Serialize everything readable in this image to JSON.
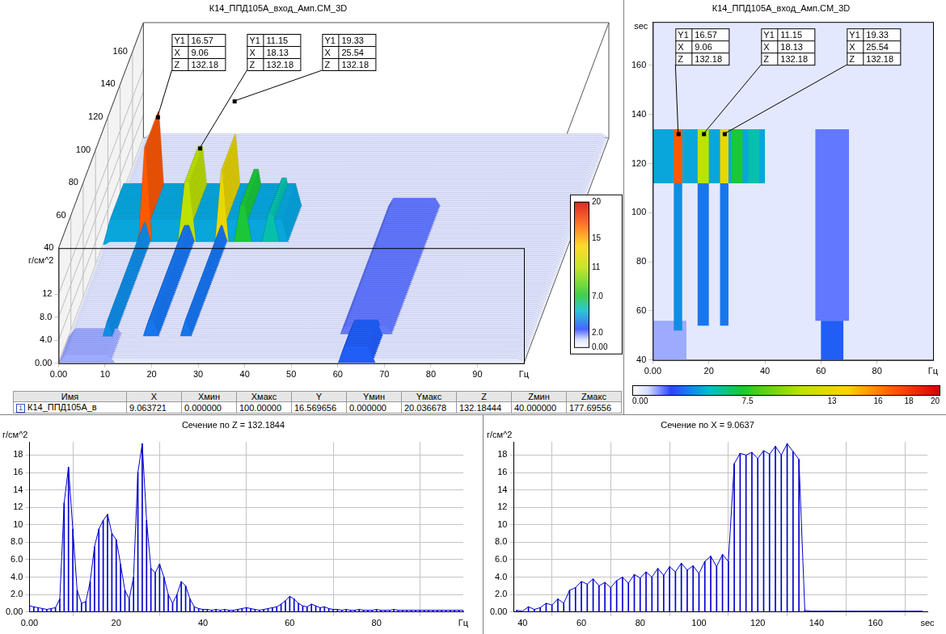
{
  "chart_data": [
    {
      "type": "waterfall3d",
      "title": "К14_ППД105А_вход_Амп.СМ_3D",
      "x_label": "Гц",
      "y_label": "г/см^2",
      "xlim": [
        0,
        100
      ],
      "xticks": [
        {
          "value": 0,
          "label": "0.00"
        },
        10,
        20,
        30,
        40,
        50,
        60,
        70,
        80,
        90
      ],
      "ylim": [
        0,
        20
      ],
      "yticks": [
        {
          "value": 0,
          "label": "0.00"
        },
        {
          "value": 4,
          "label": "4.0"
        },
        {
          "value": 8,
          "label": "8.0"
        },
        12
      ],
      "zlim": [
        40,
        177.69556
      ],
      "zticks": [
        40,
        60,
        80,
        100,
        120,
        140,
        160
      ],
      "grid": true,
      "cells": [
        {
          "x": [
            0,
            100
          ],
          "z": [
            40,
            177.69556
          ],
          "value": 0.7
        },
        {
          "x": [
            0,
            12
          ],
          "z": [
            40,
            56
          ],
          "value": 1.5
        },
        {
          "x": [
            60,
            68
          ],
          "z": [
            40,
            56
          ],
          "value": 3
        },
        {
          "x": [
            58,
            70
          ],
          "z": [
            56,
            134
          ],
          "value": 2
        },
        {
          "x": [
            0,
            40
          ],
          "z": [
            112,
            134
          ],
          "value": 4.5
        },
        {
          "x": [
            7.5,
            10.5
          ],
          "z": [
            52,
            112
          ],
          "value": 4
        },
        {
          "x": [
            7.5,
            10.5
          ],
          "z": [
            112,
            134
          ],
          "value": 17
        },
        {
          "x": [
            16,
            20
          ],
          "z": [
            54,
            112
          ],
          "value": 3.5
        },
        {
          "x": [
            16,
            20
          ],
          "z": [
            112,
            134
          ],
          "value": 11
        },
        {
          "x": [
            24,
            27
          ],
          "z": [
            54,
            112
          ],
          "value": 3.5
        },
        {
          "x": [
            24,
            27
          ],
          "z": [
            112,
            134
          ],
          "value": 13
        },
        {
          "x": [
            28,
            32
          ],
          "z": [
            112,
            134
          ],
          "value": 7
        },
        {
          "x": [
            34,
            38
          ],
          "z": [
            112,
            134
          ],
          "value": 5.5
        }
      ],
      "colorbar": {
        "range": [
          0,
          20
        ],
        "ticks": [
          {
            "value": 0,
            "label": "0.00"
          },
          {
            "value": 2,
            "label": "2.0"
          },
          {
            "value": 7,
            "label": "7.0"
          },
          11,
          15,
          20
        ]
      },
      "markers": {
        "labels": [
          "Y1",
          "X",
          "Z"
        ],
        "points": [
          {
            "y1": 16.57,
            "x": 9.06,
            "z": 132.18
          },
          {
            "y1": 11.15,
            "x": 18.13,
            "z": 132.18
          },
          {
            "y1": 19.33,
            "x": 25.54,
            "z": 132.18
          }
        ]
      }
    },
    {
      "type": "heatmap",
      "title": "К14_ППД105А_вход_Амп.СМ_3D",
      "x_label": "Гц",
      "y_label": "sec",
      "xlim": [
        0,
        100
      ],
      "xticks": [
        {
          "value": 0,
          "label": "0.00"
        },
        20,
        40,
        60,
        80
      ],
      "ylim": [
        40,
        177.69556
      ],
      "yticks": [
        40,
        60,
        80,
        100,
        120,
        140,
        160
      ],
      "grid": false,
      "cells": [
        {
          "x": [
            0,
            100
          ],
          "y": [
            40,
            177.69556
          ],
          "value": 0.7
        },
        {
          "x": [
            0,
            12
          ],
          "y": [
            40,
            56
          ],
          "value": 1.5
        },
        {
          "x": [
            60,
            68
          ],
          "y": [
            40,
            56
          ],
          "value": 3
        },
        {
          "x": [
            58,
            70
          ],
          "y": [
            56,
            134
          ],
          "value": 2
        },
        {
          "x": [
            0,
            40
          ],
          "y": [
            112,
            134
          ],
          "value": 4.5
        },
        {
          "x": [
            7.5,
            10.5
          ],
          "y": [
            52,
            112
          ],
          "value": 4
        },
        {
          "x": [
            7.5,
            10.5
          ],
          "y": [
            112,
            134
          ],
          "value": 17
        },
        {
          "x": [
            16,
            20
          ],
          "y": [
            54,
            112
          ],
          "value": 3.5
        },
        {
          "x": [
            16,
            20
          ],
          "y": [
            112,
            134
          ],
          "value": 11
        },
        {
          "x": [
            24,
            27
          ],
          "y": [
            54,
            112
          ],
          "value": 3.5
        },
        {
          "x": [
            24,
            27
          ],
          "y": [
            112,
            134
          ],
          "value": 13
        },
        {
          "x": [
            28,
            32
          ],
          "y": [
            112,
            134
          ],
          "value": 7
        },
        {
          "x": [
            34,
            38
          ],
          "y": [
            112,
            134
          ],
          "value": 5.5
        }
      ],
      "colorbar": {
        "range": [
          0,
          20
        ],
        "ticks": [
          {
            "value": 0,
            "label": "0.00"
          },
          7.5,
          13,
          16,
          18,
          20
        ]
      },
      "markers": {
        "labels": [
          "Y1",
          "X",
          "Z"
        ],
        "points": [
          {
            "y1": 16.57,
            "x": 9.06,
            "z": 132.18
          },
          {
            "y1": 11.15,
            "x": 18.13,
            "z": 132.18
          },
          {
            "y1": 19.33,
            "x": 25.54,
            "z": 132.18
          }
        ]
      }
    },
    {
      "type": "line",
      "title": "Сечение по Z = 132.1844",
      "x_label": "Гц",
      "y_label": "г/см^2",
      "color": "#0000cc",
      "marker": "none",
      "line_style": "solid",
      "grid": true,
      "xlim": [
        0,
        100
      ],
      "xticks": [
        {
          "value": 0,
          "label": "0.00"
        },
        20,
        40,
        60,
        80
      ],
      "ylim": [
        0,
        19.5
      ],
      "yticks": [
        {
          "value": 0,
          "label": "0.00"
        },
        {
          "value": 2,
          "label": "2.0"
        },
        {
          "value": 4,
          "label": "4.0"
        },
        {
          "value": 6,
          "label": "6.0"
        },
        {
          "value": 8,
          "label": "8.0"
        },
        10,
        12,
        14,
        16,
        18
      ],
      "x": [
        0,
        1,
        2,
        3,
        4,
        5,
        6,
        7,
        8,
        9,
        10,
        11,
        12,
        13,
        14,
        15,
        16,
        17,
        18,
        19,
        20,
        21,
        22,
        23,
        24,
        25,
        26,
        27,
        28,
        29,
        30,
        31,
        32,
        33,
        34,
        35,
        36,
        37,
        38,
        39,
        40,
        41,
        42,
        43,
        44,
        45,
        46,
        47,
        48,
        49,
        50,
        51,
        52,
        53,
        54,
        55,
        56,
        57,
        58,
        59,
        60,
        61,
        62,
        63,
        64,
        65,
        66,
        67,
        68,
        69,
        70,
        71,
        72,
        73,
        74,
        75,
        76,
        77,
        78,
        79,
        80,
        81,
        82,
        83,
        84,
        85,
        86,
        87,
        88,
        89,
        90,
        91,
        92,
        93,
        94,
        95,
        96,
        97,
        98,
        99,
        100
      ],
      "values": [
        0.7,
        0.6,
        0.5,
        0.4,
        0.3,
        0.4,
        0.5,
        1.5,
        12.5,
        16.6,
        9.5,
        2.5,
        1.0,
        1.2,
        3.5,
        7.5,
        9.5,
        10.5,
        11.2,
        9.0,
        8.3,
        5.5,
        2.5,
        1.5,
        4.0,
        16.0,
        19.3,
        10.5,
        5.0,
        4.5,
        5.5,
        4.0,
        2.0,
        1.0,
        2.0,
        3.5,
        3.0,
        1.5,
        0.6,
        0.4,
        0.3,
        0.3,
        0.2,
        0.3,
        0.2,
        0.3,
        0.2,
        0.2,
        0.3,
        0.4,
        0.5,
        0.4,
        0.3,
        0.2,
        0.3,
        0.4,
        0.5,
        0.6,
        0.9,
        1.3,
        1.8,
        1.5,
        1.0,
        0.7,
        0.6,
        0.9,
        0.7,
        0.5,
        0.6,
        0.4,
        0.3,
        0.3,
        0.2,
        0.3,
        0.2,
        0.2,
        0.3,
        0.2,
        0.2,
        0.2,
        0.3,
        0.2,
        0.2,
        0.2,
        0.3,
        0.2,
        0.2,
        0.2,
        0.2,
        0.2,
        0.2,
        0.2,
        0.2,
        0.2,
        0.2,
        0.2,
        0.2,
        0.2,
        0.2,
        0.2,
        0.2
      ]
    },
    {
      "type": "line",
      "title": "Сечение по X = 9.0637",
      "x_label": "sec",
      "y_label": "г/см^2",
      "color": "#0000cc",
      "marker": "none",
      "line_style": "solid",
      "grid": true,
      "xlim": [
        37,
        177.7
      ],
      "xticks": [
        40,
        60,
        80,
        100,
        120,
        140,
        160
      ],
      "ylim": [
        0,
        19.5
      ],
      "yticks": [
        {
          "value": 0,
          "label": "0.00"
        },
        {
          "value": 2,
          "label": "2.0"
        },
        {
          "value": 4,
          "label": "4.0"
        },
        {
          "value": 6,
          "label": "6.0"
        },
        {
          "value": 8,
          "label": "8.0"
        },
        10,
        12,
        14,
        16,
        18
      ],
      "x": [
        38,
        40,
        42,
        44,
        46,
        48,
        50,
        52,
        54,
        56,
        58,
        60,
        62,
        64,
        66,
        68,
        70,
        72,
        74,
        76,
        78,
        80,
        82,
        84,
        86,
        88,
        90,
        92,
        94,
        96,
        98,
        100,
        102,
        104,
        106,
        108,
        110,
        112,
        114,
        116,
        118,
        120,
        122,
        124,
        126,
        128,
        130,
        132,
        134,
        136,
        138,
        140,
        142,
        144,
        146,
        148,
        150,
        152,
        154,
        156,
        158,
        160,
        162,
        164,
        166,
        168,
        170,
        172,
        174,
        176
      ],
      "values": [
        0.2,
        0.1,
        0.6,
        0.3,
        0.5,
        1.0,
        0.8,
        1.5,
        1.0,
        2.5,
        2.8,
        3.5,
        3.2,
        3.8,
        3.0,
        3.4,
        2.8,
        3.6,
        4.0,
        3.3,
        4.3,
        3.9,
        4.6,
        4.0,
        5.0,
        4.2,
        5.2,
        4.6,
        5.6,
        4.8,
        5.3,
        4.4,
        5.8,
        6.4,
        5.2,
        6.6,
        5.8,
        17.0,
        18.2,
        18.0,
        18.3,
        17.6,
        18.5,
        18.1,
        19.0,
        18.0,
        19.3,
        18.4,
        17.5,
        0.2,
        0.1,
        0.1,
        0.1,
        0.1,
        0.1,
        0.1,
        0.1,
        0.1,
        0.1,
        0.1,
        0.1,
        0.1,
        0.1,
        0.1,
        0.1,
        0.1,
        0.1,
        0.1,
        0.1,
        0.1
      ]
    }
  ],
  "table": {
    "columns": [
      "Имя",
      "X",
      "Xмин",
      "Xмакс",
      "Y",
      "Yмин",
      "Yмакс",
      "Z",
      "Zмин",
      "Zмакс"
    ],
    "rows": [
      {
        "index": "1",
        "cells": [
          "К14_ППД105А_в",
          "9.063721",
          "0.000000",
          "100.00000",
          "16.569656",
          "0.000000",
          "20.036678",
          "132.18444",
          "40.000000",
          "177.69556"
        ]
      }
    ]
  }
}
